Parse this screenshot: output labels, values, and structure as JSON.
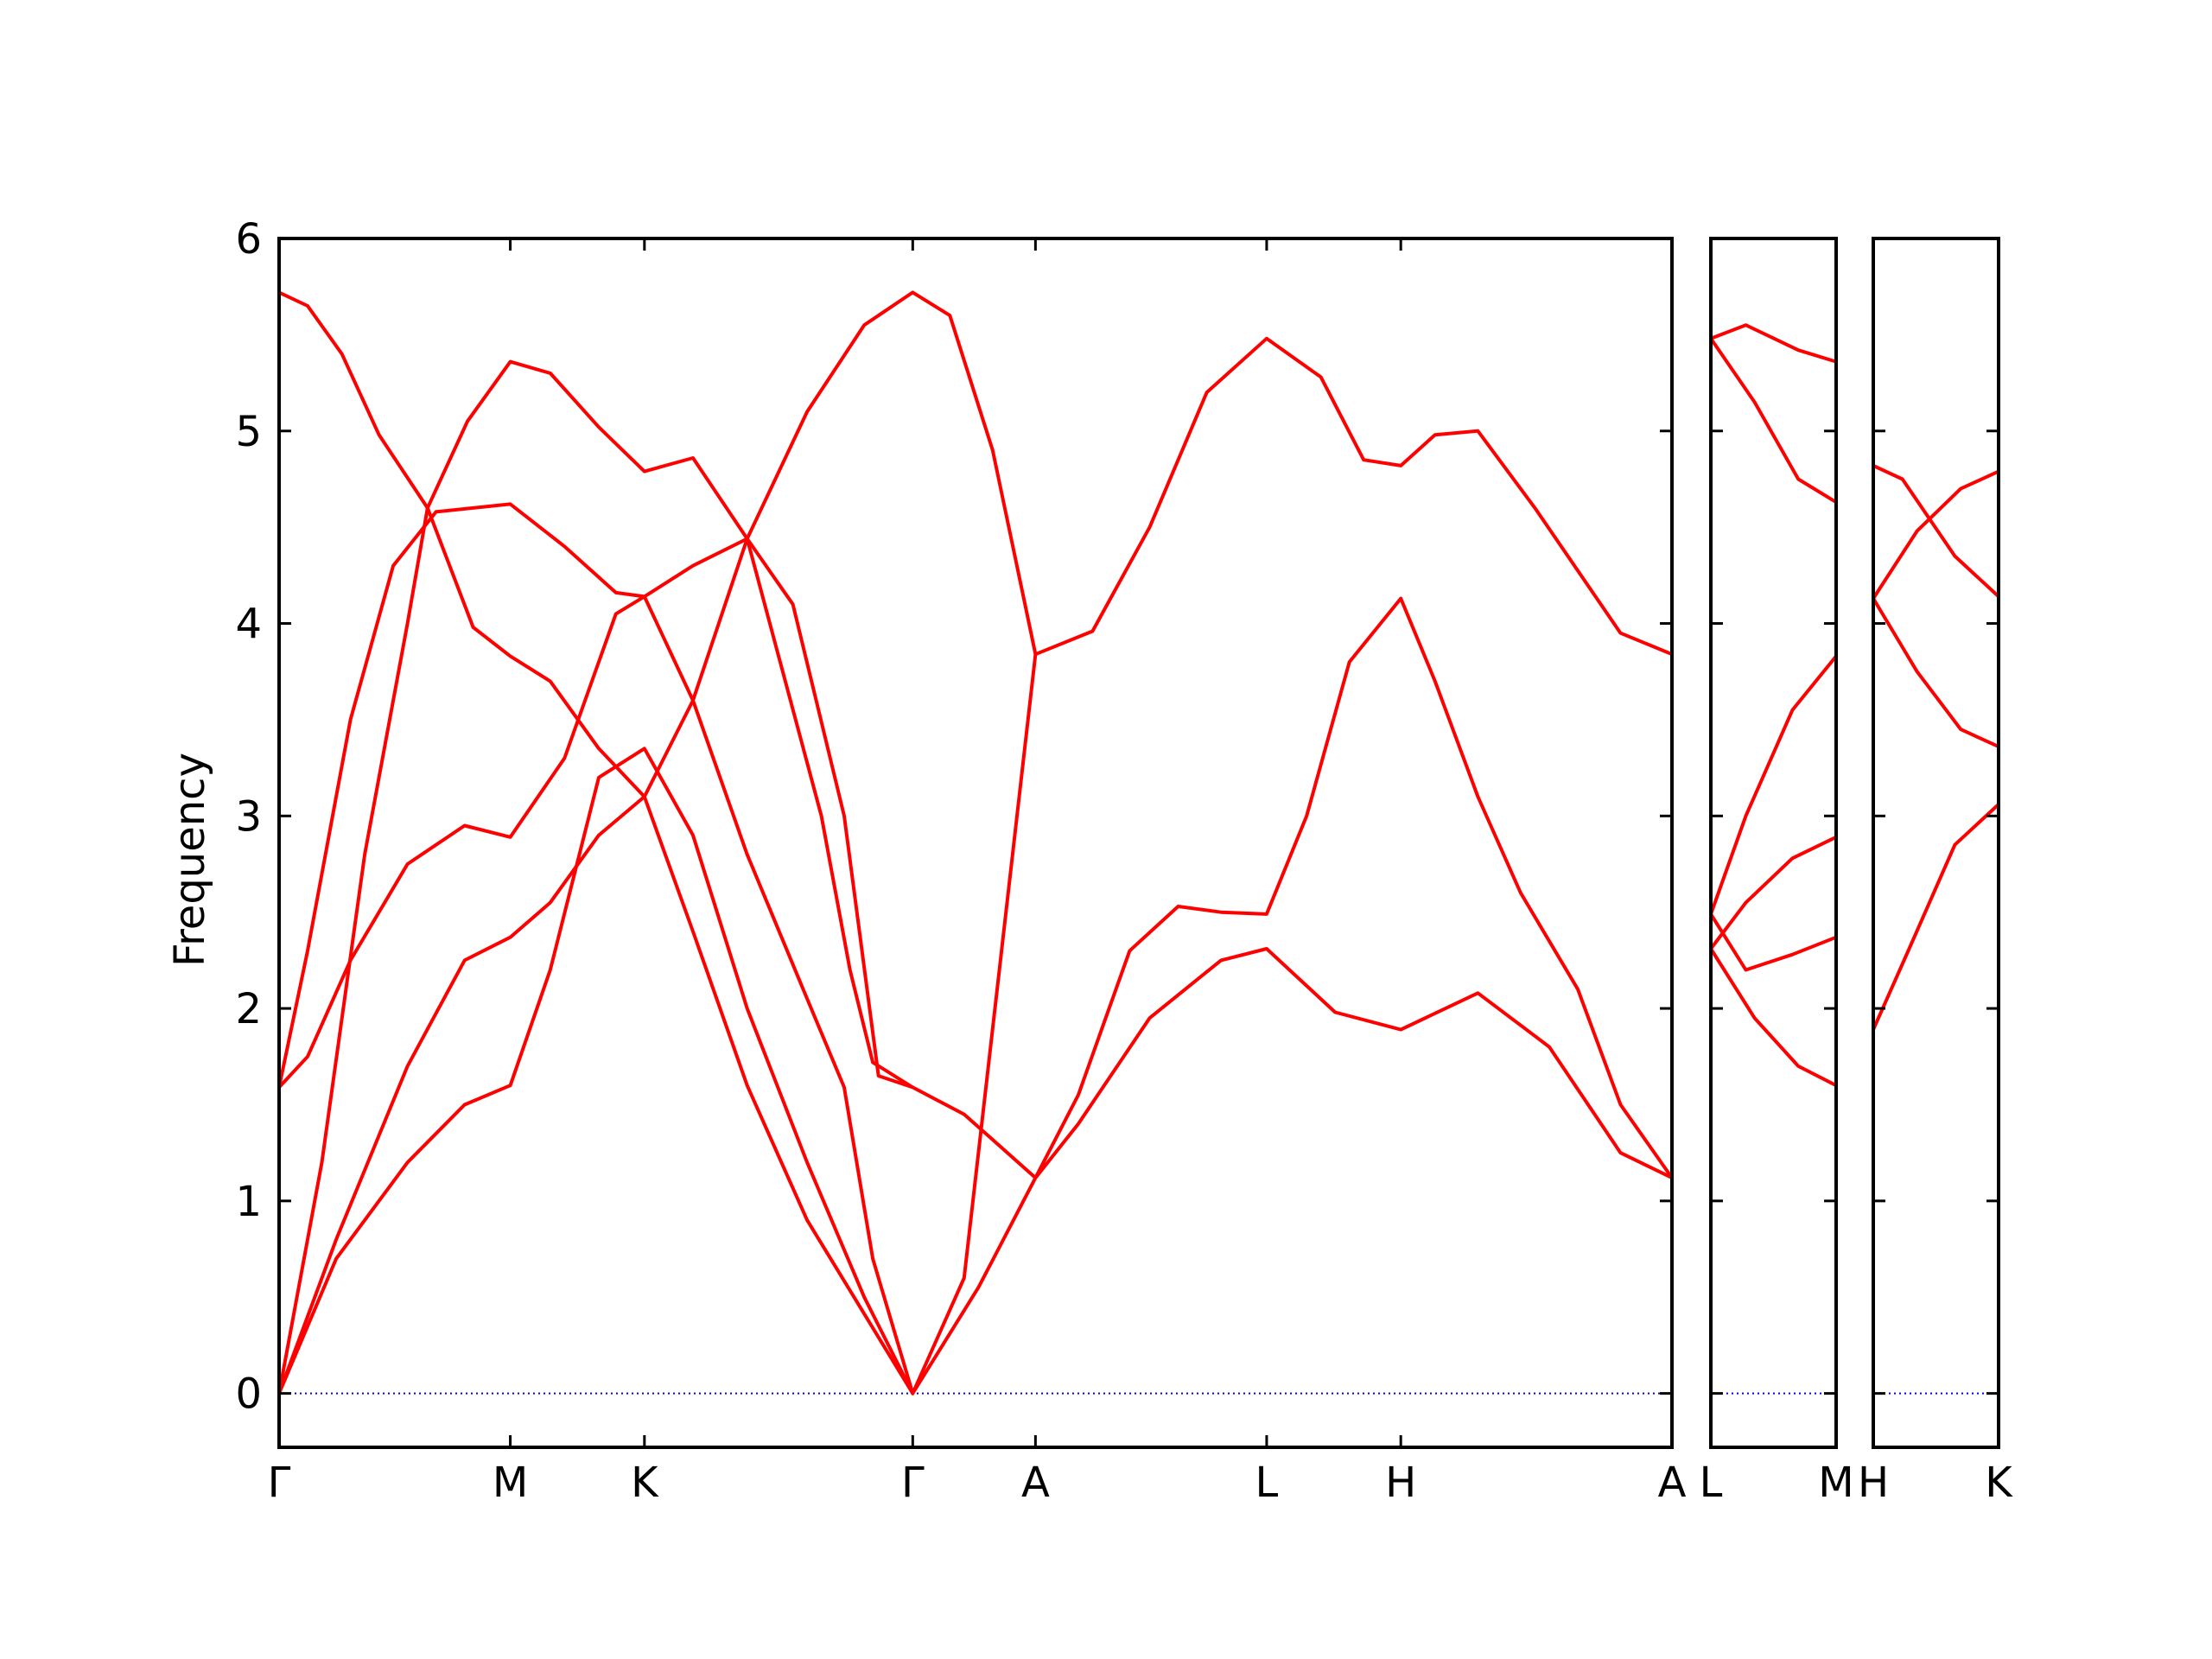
{
  "chart_data": {
    "type": "line",
    "title": "",
    "ylabel": "Frequency",
    "ylim": [
      -0.28,
      6
    ],
    "yticks": [
      0,
      1,
      2,
      3,
      4,
      5,
      6
    ],
    "grid": false,
    "colors": {
      "bands": "#ff0000",
      "zero_line": "#0000ff",
      "axes": "#000000"
    },
    "panels": [
      {
        "id": "p1",
        "xrange": [
          0,
          4.88
        ],
        "ticks": [
          {
            "x": 0.0,
            "label": "Γ"
          },
          {
            "x": 0.81,
            "label": "M"
          },
          {
            "x": 1.28,
            "label": "K"
          },
          {
            "x": 2.22,
            "label": "Γ"
          },
          {
            "x": 2.65,
            "label": "A"
          },
          {
            "x": 3.46,
            "label": "L"
          },
          {
            "x": 3.93,
            "label": "H"
          },
          {
            "x": 4.88,
            "label": "A"
          }
        ],
        "series": [
          {
            "values": [
              [
                0,
                5.72
              ],
              [
                0.1,
                5.65
              ],
              [
                0.22,
                5.4
              ],
              [
                0.35,
                4.98
              ],
              [
                0.52,
                4.6
              ],
              [
                0.66,
                5.05
              ],
              [
                0.81,
                5.36
              ],
              [
                0.95,
                5.3
              ],
              [
                1.12,
                5.02
              ],
              [
                1.28,
                4.79
              ],
              [
                1.45,
                4.86
              ],
              [
                1.64,
                4.44
              ],
              [
                1.9,
                3.0
              ],
              [
                2.0,
                2.2
              ],
              [
                2.08,
                1.72
              ],
              [
                2.22,
                1.59
              ],
              [
                2.4,
                1.45
              ],
              [
                2.65,
                1.12
              ],
              [
                2.8,
                1.4
              ],
              [
                3.05,
                1.95
              ],
              [
                3.3,
                2.25
              ],
              [
                3.46,
                2.31
              ],
              [
                3.7,
                1.98
              ],
              [
                3.93,
                1.89
              ],
              [
                4.2,
                2.08
              ],
              [
                4.45,
                1.8
              ],
              [
                4.7,
                1.25
              ],
              [
                4.88,
                1.12
              ]
            ]
          },
          {
            "values": [
              [
                0,
                1.59
              ],
              [
                0.1,
                1.75
              ],
              [
                0.25,
                2.25
              ],
              [
                0.45,
                2.75
              ],
              [
                0.65,
                2.95
              ],
              [
                0.81,
                2.89
              ],
              [
                1.0,
                3.3
              ],
              [
                1.18,
                4.05
              ],
              [
                1.28,
                4.14
              ],
              [
                1.45,
                4.3
              ],
              [
                1.64,
                4.44
              ],
              [
                1.85,
                5.1
              ],
              [
                2.05,
                5.55
              ],
              [
                2.22,
                5.72
              ],
              [
                2.35,
                5.6
              ],
              [
                2.5,
                4.9
              ],
              [
                2.65,
                3.84
              ],
              [
                2.85,
                3.96
              ],
              [
                3.05,
                4.5
              ],
              [
                3.25,
                5.2
              ],
              [
                3.46,
                5.48
              ],
              [
                3.65,
                5.28
              ],
              [
                3.8,
                4.85
              ],
              [
                3.93,
                4.82
              ],
              [
                4.05,
                4.98
              ],
              [
                4.2,
                5.0
              ],
              [
                4.4,
                4.6
              ],
              [
                4.7,
                3.95
              ],
              [
                4.88,
                3.84
              ]
            ]
          },
          {
            "values": [
              [
                0,
                1.59
              ],
              [
                0.1,
                2.3
              ],
              [
                0.25,
                3.5
              ],
              [
                0.4,
                4.3
              ],
              [
                0.55,
                4.58
              ],
              [
                0.81,
                4.62
              ],
              [
                1.0,
                4.4
              ],
              [
                1.18,
                4.16
              ],
              [
                1.28,
                4.14
              ],
              [
                1.45,
                3.6
              ],
              [
                1.64,
                2.8
              ],
              [
                1.85,
                2.05
              ],
              [
                1.98,
                1.59
              ],
              [
                2.08,
                0.7
              ],
              [
                2.22,
                0.0
              ]
            ]
          },
          {
            "values": [
              [
                0,
                0.0
              ],
              [
                0.15,
                1.2
              ],
              [
                0.3,
                2.8
              ],
              [
                0.45,
                4.0
              ],
              [
                0.52,
                4.6
              ],
              [
                0.68,
                3.98
              ],
              [
                0.81,
                3.83
              ],
              [
                0.95,
                3.7
              ],
              [
                1.12,
                3.35
              ],
              [
                1.28,
                3.1
              ],
              [
                1.45,
                2.4
              ],
              [
                1.64,
                1.6
              ],
              [
                1.85,
                0.9
              ],
              [
                2.22,
                0.0
              ]
            ]
          },
          {
            "values": [
              [
                0,
                0.0
              ],
              [
                0.2,
                0.8
              ],
              [
                0.45,
                1.7
              ],
              [
                0.65,
                2.25
              ],
              [
                0.81,
                2.37
              ],
              [
                0.95,
                2.55
              ],
              [
                1.12,
                2.9
              ],
              [
                1.28,
                3.1
              ],
              [
                1.45,
                3.6
              ],
              [
                1.64,
                4.44
              ],
              [
                1.8,
                4.1
              ],
              [
                1.98,
                3.0
              ],
              [
                2.1,
                1.65
              ],
              [
                2.22,
                1.59
              ]
            ]
          },
          {
            "values": [
              [
                0,
                0.0
              ],
              [
                0.2,
                0.7
              ],
              [
                0.45,
                1.2
              ],
              [
                0.65,
                1.5
              ],
              [
                0.81,
                1.6
              ],
              [
                0.95,
                2.2
              ],
              [
                1.12,
                3.2
              ],
              [
                1.28,
                3.35
              ],
              [
                1.45,
                2.9
              ],
              [
                1.64,
                2.0
              ],
              [
                1.85,
                1.2
              ],
              [
                2.05,
                0.5
              ],
              [
                2.22,
                0.0
              ]
            ]
          },
          {
            "values": [
              [
                2.22,
                0.0
              ],
              [
                2.4,
                0.6
              ],
              [
                2.65,
                3.84
              ]
            ]
          },
          {
            "values": [
              [
                2.22,
                0.0
              ],
              [
                2.45,
                0.55
              ],
              [
                2.65,
                1.12
              ],
              [
                2.8,
                1.55
              ],
              [
                2.98,
                2.3
              ],
              [
                3.15,
                2.53
              ],
              [
                3.3,
                2.5
              ],
              [
                3.46,
                2.49
              ],
              [
                3.6,
                3.0
              ],
              [
                3.75,
                3.8
              ],
              [
                3.93,
                4.13
              ],
              [
                4.05,
                3.7
              ],
              [
                4.2,
                3.1
              ],
              [
                4.35,
                2.6
              ],
              [
                4.55,
                2.1
              ],
              [
                4.7,
                1.5
              ],
              [
                4.88,
                1.12
              ]
            ]
          }
        ]
      },
      {
        "id": "p2",
        "xrange": [
          0,
          0.43
        ],
        "ticks": [
          {
            "x": 0.0,
            "label": "L"
          },
          {
            "x": 0.43,
            "label": "M"
          }
        ],
        "series": [
          {
            "values": [
              [
                0,
                5.48
              ],
              [
                0.12,
                5.55
              ],
              [
                0.3,
                5.42
              ],
              [
                0.43,
                5.36
              ]
            ]
          },
          {
            "values": [
              [
                0,
                5.48
              ],
              [
                0.15,
                5.15
              ],
              [
                0.3,
                4.75
              ],
              [
                0.43,
                4.63
              ]
            ]
          },
          {
            "values": [
              [
                0,
                2.49
              ],
              [
                0.12,
                3.0
              ],
              [
                0.28,
                3.55
              ],
              [
                0.43,
                3.83
              ]
            ]
          },
          {
            "values": [
              [
                0,
                2.31
              ],
              [
                0.12,
                2.55
              ],
              [
                0.28,
                2.78
              ],
              [
                0.43,
                2.89
              ]
            ]
          },
          {
            "values": [
              [
                0,
                2.49
              ],
              [
                0.12,
                2.2
              ],
              [
                0.28,
                2.28
              ],
              [
                0.43,
                2.37
              ]
            ]
          },
          {
            "values": [
              [
                0,
                2.31
              ],
              [
                0.15,
                1.95
              ],
              [
                0.3,
                1.7
              ],
              [
                0.43,
                1.6
              ]
            ]
          }
        ]
      },
      {
        "id": "p3",
        "xrange": [
          0,
          0.43
        ],
        "ticks": [
          {
            "x": 0.0,
            "label": "H"
          },
          {
            "x": 0.43,
            "label": "K"
          }
        ],
        "series": [
          {
            "values": [
              [
                0,
                4.82
              ],
              [
                0.1,
                4.75
              ],
              [
                0.28,
                4.35
              ],
              [
                0.43,
                4.14
              ]
            ]
          },
          {
            "values": [
              [
                0,
                4.13
              ],
              [
                0.15,
                4.48
              ],
              [
                0.3,
                4.7
              ],
              [
                0.43,
                4.79
              ]
            ]
          },
          {
            "values": [
              [
                0,
                4.13
              ],
              [
                0.15,
                3.75
              ],
              [
                0.3,
                3.45
              ],
              [
                0.43,
                3.36
              ]
            ]
          },
          {
            "values": [
              [
                0,
                1.89
              ],
              [
                0.12,
                2.3
              ],
              [
                0.28,
                2.85
              ],
              [
                0.43,
                3.06
              ]
            ]
          }
        ]
      }
    ]
  }
}
